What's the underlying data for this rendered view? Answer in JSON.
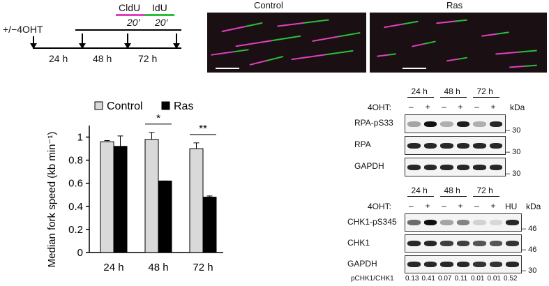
{
  "schematic": {
    "treatment_label": "+/−4OHT",
    "pulse1_label": "CldU",
    "pulse2_label": "IdU",
    "pulse1_time": "20′",
    "pulse2_time": "20′",
    "pulse1_color": "#e040c0",
    "pulse2_color": "#2bbf3a",
    "timepoints": [
      "24 h",
      "48 h",
      "72 h"
    ]
  },
  "micrographs": {
    "control_title": "Control",
    "ras_title": "Ras"
  },
  "chart_data": {
    "type": "bar",
    "categories": [
      "24 h",
      "48 h",
      "72 h"
    ],
    "series": [
      {
        "name": "Control",
        "values": [
          0.96,
          0.98,
          0.9
        ],
        "errors": [
          0.01,
          0.06,
          0.05
        ],
        "color": "#d9d9d9"
      },
      {
        "name": "Ras",
        "values": [
          0.92,
          0.62,
          0.48
        ],
        "errors": [
          0.09,
          0.0,
          0.01
        ],
        "color": "#000000"
      }
    ],
    "ylabel": "Median fork speed (kb min⁻¹)",
    "ylim": [
      0,
      1.1
    ],
    "yticks": [
      "0",
      "0.2",
      "0.4",
      "0.6",
      "0.8",
      "1"
    ],
    "yticks_values": [
      0,
      0.2,
      0.4,
      0.6,
      0.8,
      1.0
    ],
    "significance": [
      {
        "category": "48 h",
        "label": "*"
      },
      {
        "category": "72 h",
        "label": "**"
      }
    ],
    "legend_placement": "top"
  },
  "blot1": {
    "timepoints": [
      "24 h",
      "48 h",
      "72 h"
    ],
    "treatment_label": "4OHT:",
    "treatment": [
      "–",
      "+",
      "–",
      "+",
      "–",
      "+"
    ],
    "kda_label": "kDa",
    "rows": [
      {
        "name": "RPA-pS33",
        "kda": "30",
        "intensity": [
          0.35,
          1.0,
          0.3,
          0.95,
          0.3,
          0.9
        ]
      },
      {
        "name": "RPA",
        "kda": "30",
        "intensity": [
          0.9,
          0.9,
          0.9,
          0.9,
          0.9,
          0.9
        ]
      },
      {
        "name": "GAPDH",
        "kda": "30",
        "intensity": [
          0.9,
          0.9,
          0.9,
          0.9,
          0.9,
          0.9
        ]
      }
    ]
  },
  "blot2": {
    "timepoints": [
      "24 h",
      "48 h",
      "72 h"
    ],
    "hu_label": "HU",
    "treatment_label": "4OHT:",
    "treatment": [
      "–",
      "+",
      "–",
      "+",
      "–",
      "+"
    ],
    "kda_label": "kDa",
    "rows": [
      {
        "name": "CHK1-pS345",
        "kda": "46",
        "intensity": [
          0.6,
          1.0,
          0.35,
          0.5,
          0.15,
          0.12,
          0.9
        ]
      },
      {
        "name": "CHK1",
        "kda": "46",
        "intensity": [
          0.9,
          0.9,
          0.8,
          0.8,
          0.7,
          0.7,
          0.85
        ]
      },
      {
        "name": "GAPDH",
        "kda": "30",
        "intensity": [
          0.9,
          0.9,
          0.9,
          0.9,
          0.85,
          0.85,
          0.9
        ]
      }
    ],
    "ratio_label": "pCHK1/CHK1",
    "ratios": [
      "0.13",
      "0.41",
      "0.07",
      "0.11",
      "0.01",
      "0.01",
      "0.52"
    ]
  }
}
